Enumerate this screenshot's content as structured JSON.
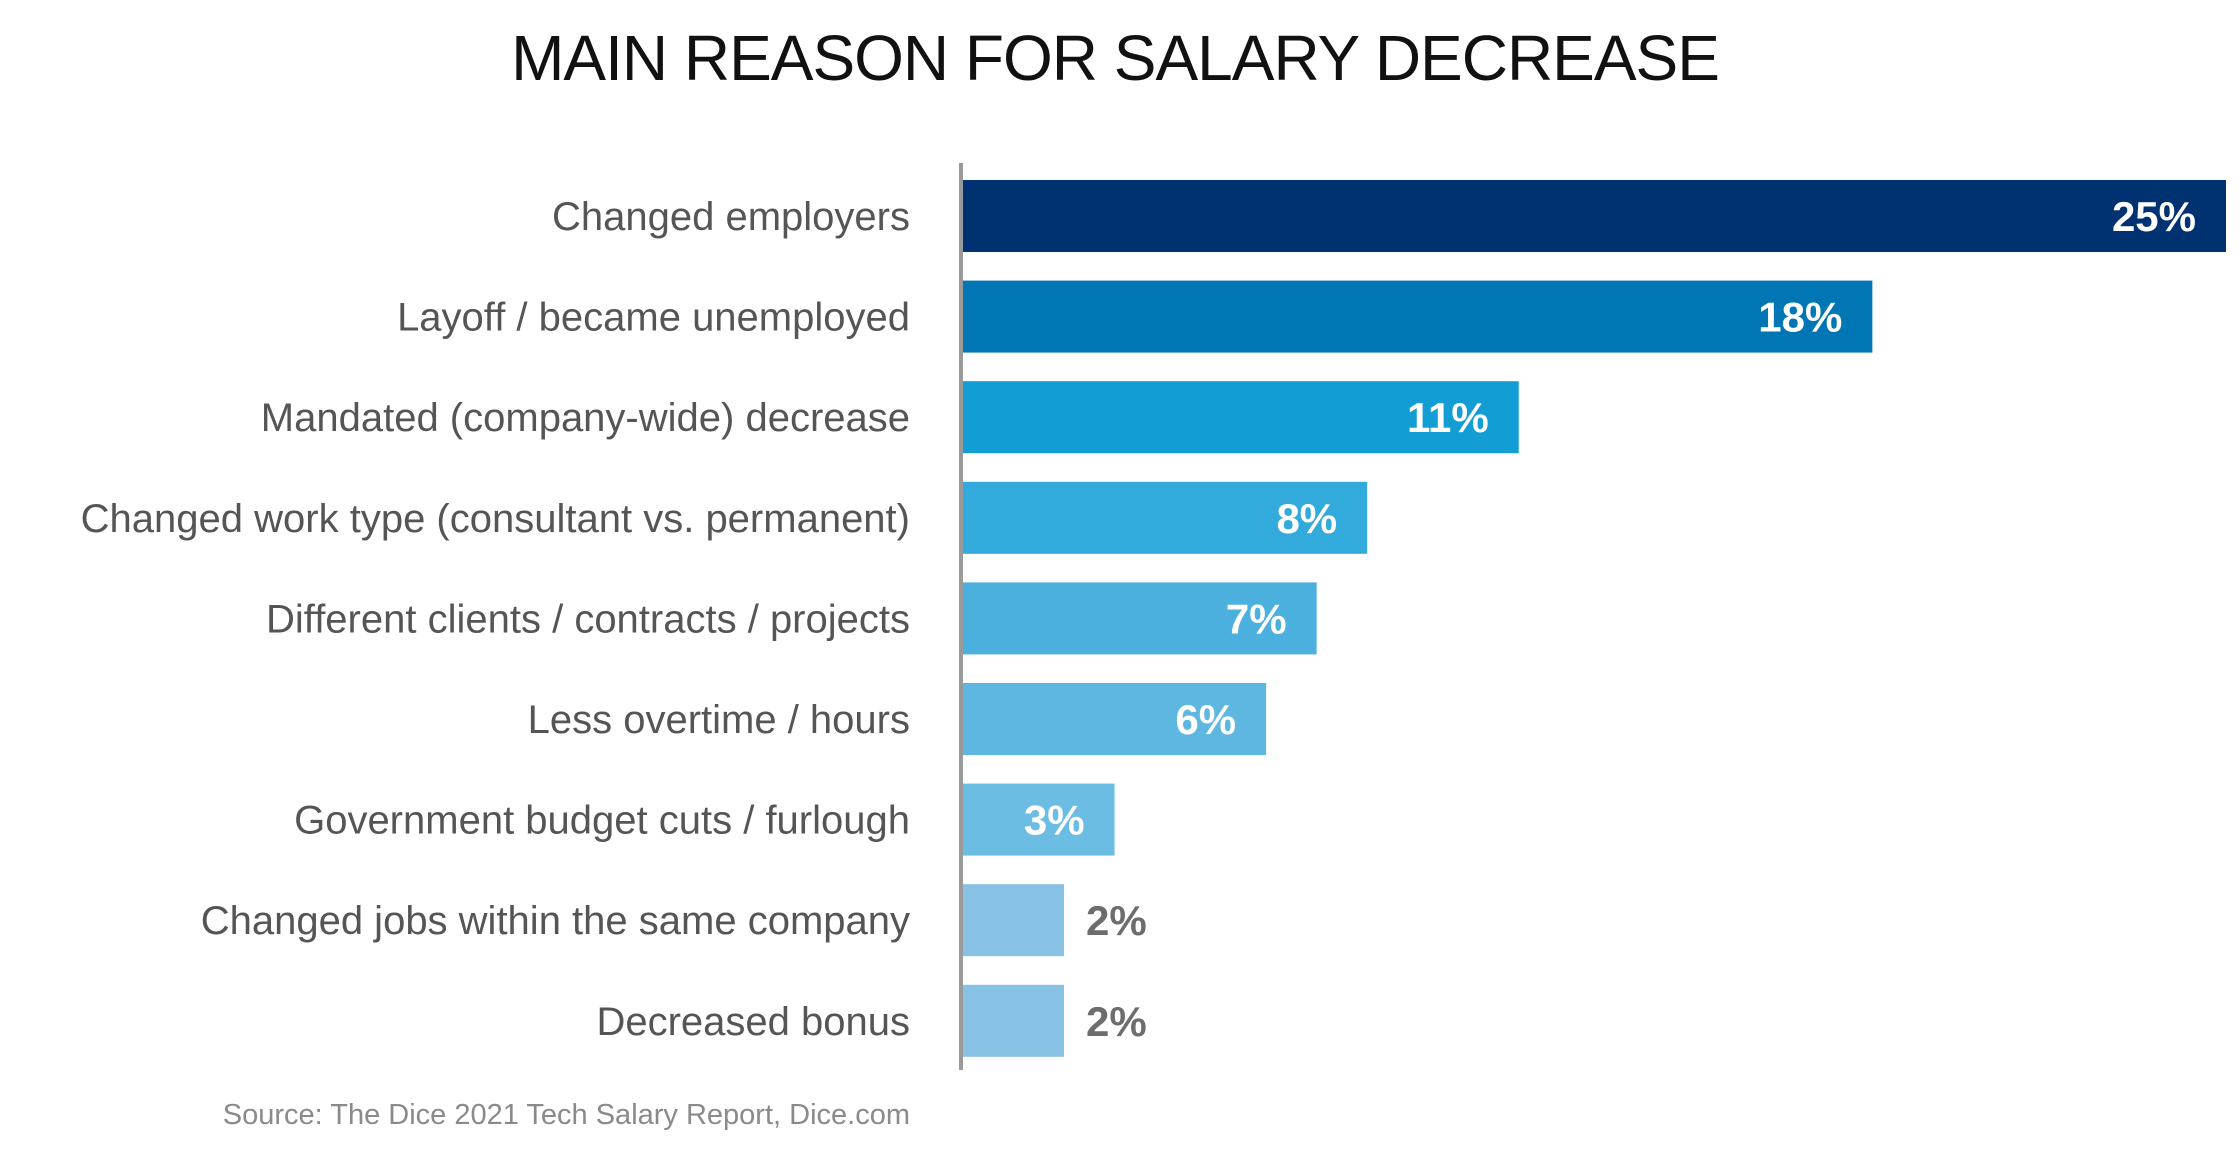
{
  "chart_data": {
    "type": "bar",
    "orientation": "horizontal",
    "title": "MAIN REASON FOR SALARY DECREASE",
    "categories": [
      "Changed employers",
      "Layoff / became unemployed",
      "Mandated (company-wide) decrease",
      "Changed work type (consultant vs. permanent)",
      "Different clients / contracts / projects",
      "Less overtime / hours",
      "Government budget cuts / furlough",
      "Changed jobs within the same company",
      "Decreased bonus"
    ],
    "values": [
      25,
      18,
      11,
      8,
      7,
      6,
      3,
      2,
      2
    ],
    "value_labels": [
      "25%",
      "18%",
      "11%",
      "8%",
      "7%",
      "6%",
      "3%",
      "2%",
      "2%"
    ],
    "bar_colors": [
      "#003271",
      "#0077b4",
      "#129ed5",
      "#33aadc",
      "#4cb0de",
      "#5db7e0",
      "#6bbde3",
      "#87c1e4",
      "#87c1e4"
    ],
    "inside_label_color": "#ffffff",
    "outside_label_color": "#6d6d6d",
    "axis_color": "#9a9a9a",
    "xlim": [
      0,
      25
    ],
    "grid": false,
    "legend": "none",
    "source": "Source: The Dice 2021 Tech Salary Report, Dice.com"
  }
}
